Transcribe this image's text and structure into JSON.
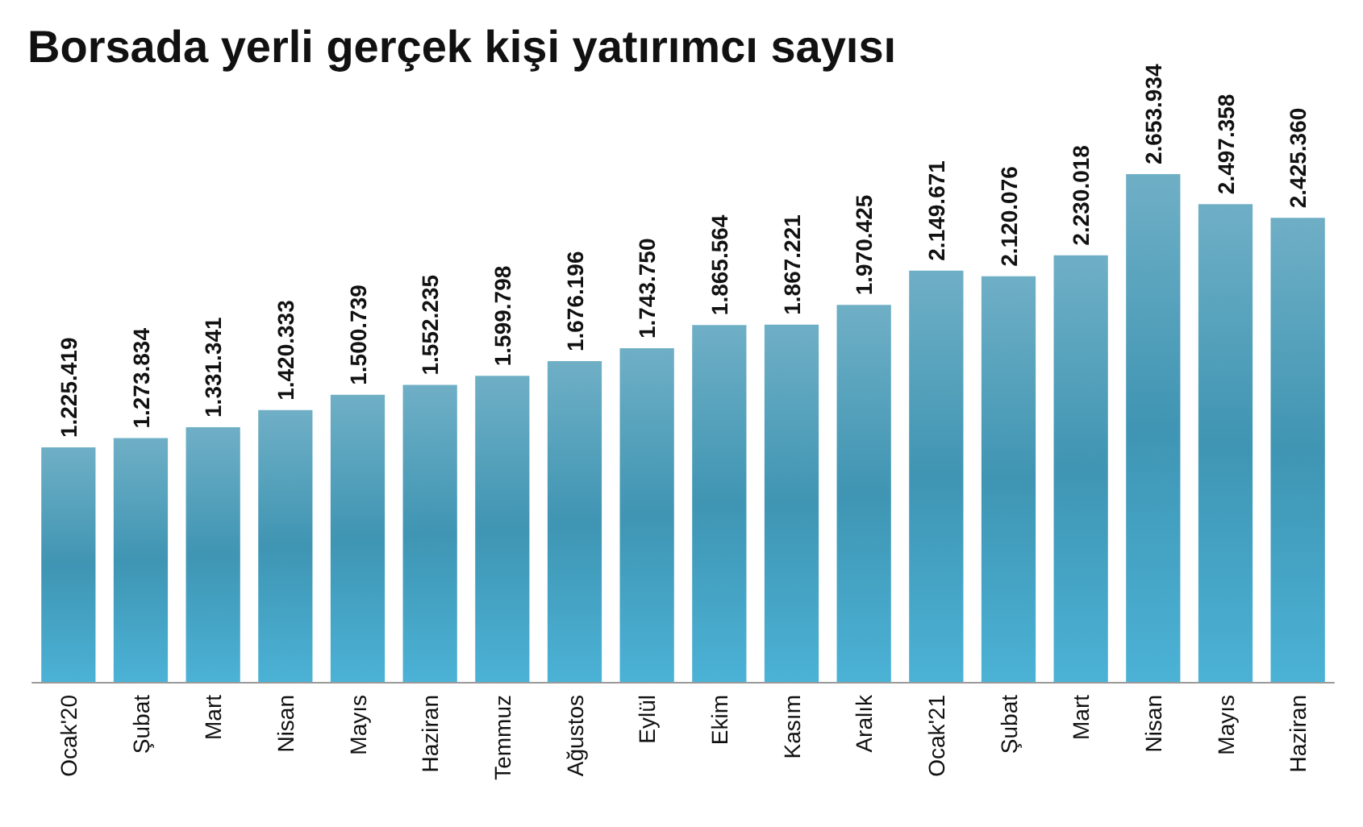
{
  "chart_data": {
    "type": "bar",
    "title": "Borsada yerli gerçek kişi yatırımcı sayısı",
    "categories": [
      "Ocak'20",
      "Şubat",
      "Mart",
      "Nisan",
      "Mayıs",
      "Haziran",
      "Temmuz",
      "Ağustos",
      "Eylül",
      "Ekim",
      "Kasım",
      "Aralık",
      "Ocak'21",
      "Şubat",
      "Mart",
      "Nisan",
      "Mayıs",
      "Haziran"
    ],
    "values": [
      1225419,
      1273834,
      1331341,
      1420333,
      1500739,
      1552235,
      1599798,
      1676196,
      1743750,
      1865564,
      1867221,
      1970425,
      2149671,
      2120076,
      2230018,
      2653934,
      2497358,
      2425360
    ],
    "value_labels": [
      "1.225.419",
      "1.273.834",
      "1.331.341",
      "1.420.333",
      "1.500.739",
      "1.552.235",
      "1.599.798",
      "1.676.196",
      "1.743.750",
      "1.865.564",
      "1.867.221",
      "1.970.425",
      "2.149.671",
      "2.120.076",
      "2.230.018",
      "2.653.934",
      "2.497.358",
      "2.425.360"
    ],
    "color": "#3f95b3"
  }
}
